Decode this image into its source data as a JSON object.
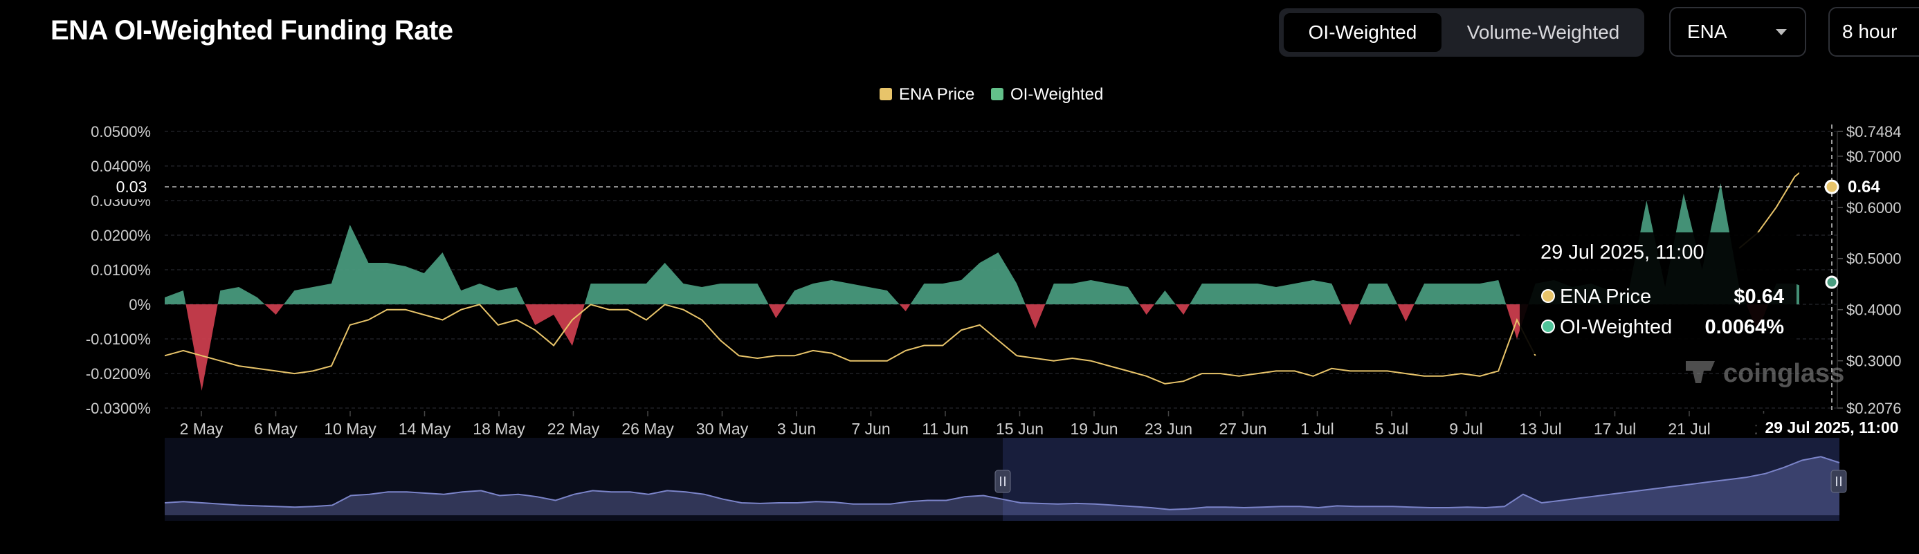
{
  "header": {
    "title": "ENA OI-Weighted Funding Rate",
    "tabs": [
      {
        "label": "OI-Weighted",
        "active": true
      },
      {
        "label": "Volume-Weighted",
        "active": false
      }
    ],
    "symbol_select": "ENA",
    "interval_select": "8 hour"
  },
  "colors": {
    "price": "#e8c46a",
    "positive": "#4a9d80",
    "negative": "#cf3f4f",
    "navigator": "#7b84c9"
  },
  "watermark": "coinglass",
  "crosshair": {
    "left_label": "0.03",
    "price_label": "0.64",
    "time_label": "29 Jul 2025, 11:00"
  },
  "tooltip": {
    "title": "29 Jul 2025, 11:00",
    "rows": [
      {
        "name": "ENA Price",
        "value": "$0.64",
        "color": "#e8c46a"
      },
      {
        "name": "OI-Weighted",
        "value": "0.0064%",
        "color": "#4fc49a"
      }
    ]
  },
  "chart_data": {
    "type": "area",
    "legend": [
      "ENA Price",
      "OI-Weighted"
    ],
    "legend_position": "top-center",
    "x_tick_labels": [
      "2 May",
      "6 May",
      "10 May",
      "14 May",
      "18 May",
      "22 May",
      "26 May",
      "30 May",
      "3 Jun",
      "7 Jun",
      "11 Jun",
      "15 Jun",
      "19 Jun",
      "23 Jun",
      "27 Jun",
      "1 Jul",
      "5 Jul",
      "9 Jul",
      "13 Jul",
      "17 Jul",
      "21 Jul",
      "25"
    ],
    "left_axis": {
      "ticks": [
        "0.0500%",
        "0.0400%",
        "0.0300%",
        "0.0200%",
        "0.0100%",
        "0%",
        "-0.0100%",
        "-0.0200%",
        "-0.0300%"
      ],
      "range": [
        -0.03,
        0.05
      ]
    },
    "right_axis": {
      "ticks": [
        "$0.7484",
        "$0.7000",
        "$0.6000",
        "$0.5000",
        "$0.4000",
        "$0.3000",
        "$0.2076"
      ],
      "range": [
        0.2076,
        0.7484
      ]
    },
    "x_range_days": [
      "2025-04-30",
      "2025-07-29"
    ],
    "series": [
      {
        "name": "OI-Weighted",
        "unit": "%",
        "x": [
          "2025-04-30",
          "2025-05-01",
          "2025-05-02",
          "2025-05-03",
          "2025-05-04",
          "2025-05-05",
          "2025-05-06",
          "2025-05-07",
          "2025-05-08",
          "2025-05-09",
          "2025-05-10",
          "2025-05-11",
          "2025-05-12",
          "2025-05-13",
          "2025-05-14",
          "2025-05-15",
          "2025-05-16",
          "2025-05-17",
          "2025-05-18",
          "2025-05-19",
          "2025-05-20",
          "2025-05-21",
          "2025-05-22",
          "2025-05-23",
          "2025-05-24",
          "2025-05-25",
          "2025-05-26",
          "2025-05-27",
          "2025-05-28",
          "2025-05-29",
          "2025-05-30",
          "2025-05-31",
          "2025-06-01",
          "2025-06-02",
          "2025-06-03",
          "2025-06-04",
          "2025-06-05",
          "2025-06-06",
          "2025-06-07",
          "2025-06-08",
          "2025-06-09",
          "2025-06-10",
          "2025-06-11",
          "2025-06-12",
          "2025-06-13",
          "2025-06-14",
          "2025-06-15",
          "2025-06-16",
          "2025-06-17",
          "2025-06-18",
          "2025-06-19",
          "2025-06-20",
          "2025-06-21",
          "2025-06-22",
          "2025-06-23",
          "2025-06-24",
          "2025-06-25",
          "2025-06-26",
          "2025-06-27",
          "2025-06-28",
          "2025-06-29",
          "2025-06-30",
          "2025-07-01",
          "2025-07-02",
          "2025-07-03",
          "2025-07-04",
          "2025-07-05",
          "2025-07-06",
          "2025-07-07",
          "2025-07-08",
          "2025-07-09",
          "2025-07-10",
          "2025-07-11",
          "2025-07-12",
          "2025-07-13",
          "2025-07-14",
          "2025-07-15",
          "2025-07-16",
          "2025-07-17",
          "2025-07-18",
          "2025-07-19",
          "2025-07-20",
          "2025-07-21",
          "2025-07-22",
          "2025-07-23",
          "2025-07-24",
          "2025-07-25",
          "2025-07-26",
          "2025-07-27",
          "2025-07-28",
          "2025-07-29"
        ],
        "values": [
          0.002,
          0.004,
          -0.025,
          0.004,
          0.005,
          0.002,
          -0.003,
          0.004,
          0.005,
          0.006,
          0.023,
          0.012,
          0.012,
          0.011,
          0.009,
          0.015,
          0.004,
          0.006,
          0.004,
          0.005,
          -0.006,
          -0.003,
          -0.012,
          0.006,
          0.006,
          0.006,
          0.006,
          0.012,
          0.006,
          0.005,
          0.006,
          0.006,
          0.006,
          -0.004,
          0.004,
          0.006,
          0.007,
          0.006,
          0.005,
          0.004,
          -0.002,
          0.006,
          0.006,
          0.007,
          0.012,
          0.015,
          0.006,
          -0.007,
          0.006,
          0.006,
          0.007,
          0.006,
          0.005,
          -0.003,
          0.004,
          -0.003,
          0.006,
          0.006,
          0.006,
          0.006,
          0.005,
          0.006,
          0.007,
          0.006,
          -0.006,
          0.006,
          0.006,
          -0.005,
          0.006,
          0.006,
          0.006,
          0.006,
          0.007,
          -0.01,
          0.006,
          0.007,
          0.005,
          0.006,
          0.004,
          0.003,
          0.03,
          0.005,
          0.032,
          0.01,
          0.035,
          0.005,
          -0.008,
          0.006,
          0.006,
          0.004,
          0.0064
        ]
      },
      {
        "name": "ENA Price",
        "unit": "$",
        "x": [
          "2025-04-30",
          "2025-05-01",
          "2025-05-02",
          "2025-05-03",
          "2025-05-04",
          "2025-05-05",
          "2025-05-06",
          "2025-05-07",
          "2025-05-08",
          "2025-05-09",
          "2025-05-10",
          "2025-05-11",
          "2025-05-12",
          "2025-05-13",
          "2025-05-14",
          "2025-05-15",
          "2025-05-16",
          "2025-05-17",
          "2025-05-18",
          "2025-05-19",
          "2025-05-20",
          "2025-05-21",
          "2025-05-22",
          "2025-05-23",
          "2025-05-24",
          "2025-05-25",
          "2025-05-26",
          "2025-05-27",
          "2025-05-28",
          "2025-05-29",
          "2025-05-30",
          "2025-05-31",
          "2025-06-01",
          "2025-06-02",
          "2025-06-03",
          "2025-06-04",
          "2025-06-05",
          "2025-06-06",
          "2025-06-07",
          "2025-06-08",
          "2025-06-09",
          "2025-06-10",
          "2025-06-11",
          "2025-06-12",
          "2025-06-13",
          "2025-06-14",
          "2025-06-15",
          "2025-06-16",
          "2025-06-17",
          "2025-06-18",
          "2025-06-19",
          "2025-06-20",
          "2025-06-21",
          "2025-06-22",
          "2025-06-23",
          "2025-06-24",
          "2025-06-25",
          "2025-06-26",
          "2025-06-27",
          "2025-06-28",
          "2025-06-29",
          "2025-06-30",
          "2025-07-01",
          "2025-07-02",
          "2025-07-03",
          "2025-07-04",
          "2025-07-05",
          "2025-07-06",
          "2025-07-07",
          "2025-07-08",
          "2025-07-09",
          "2025-07-10",
          "2025-07-11",
          "2025-07-12",
          "2025-07-13",
          "2025-07-14",
          "2025-07-15",
          "2025-07-16",
          "2025-07-17",
          "2025-07-18",
          "2025-07-19",
          "2025-07-20",
          "2025-07-21",
          "2025-07-22",
          "2025-07-23",
          "2025-07-24",
          "2025-07-25",
          "2025-07-26",
          "2025-07-27",
          "2025-07-28",
          "2025-07-29"
        ],
        "values": [
          0.31,
          0.32,
          0.31,
          0.3,
          0.29,
          0.285,
          0.28,
          0.275,
          0.28,
          0.29,
          0.37,
          0.38,
          0.4,
          0.4,
          0.39,
          0.38,
          0.4,
          0.41,
          0.37,
          0.38,
          0.36,
          0.33,
          0.38,
          0.41,
          0.4,
          0.4,
          0.38,
          0.41,
          0.4,
          0.38,
          0.34,
          0.31,
          0.305,
          0.31,
          0.31,
          0.32,
          0.315,
          0.3,
          0.3,
          0.3,
          0.32,
          0.33,
          0.33,
          0.36,
          0.37,
          0.34,
          0.31,
          0.305,
          0.3,
          0.305,
          0.3,
          0.29,
          0.28,
          0.27,
          0.255,
          0.26,
          0.275,
          0.275,
          0.27,
          0.275,
          0.28,
          0.28,
          0.27,
          0.285,
          0.28,
          0.28,
          0.28,
          0.275,
          0.27,
          0.27,
          0.275,
          0.27,
          0.28,
          0.38,
          0.31,
          null,
          null,
          null,
          null,
          null,
          null,
          null,
          null,
          null,
          null,
          0.52,
          0.55,
          0.6,
          0.66,
          0.69,
          0.64
        ]
      }
    ]
  }
}
